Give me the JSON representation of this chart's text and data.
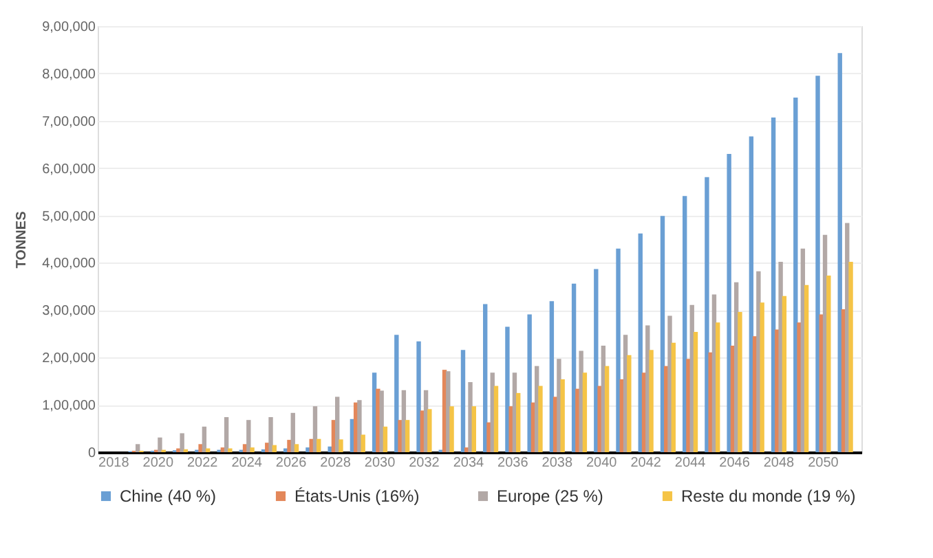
{
  "chart_data": {
    "type": "bar",
    "ylabel": "TONNES",
    "categories": [
      "2018",
      null,
      "2020",
      null,
      "2022",
      null,
      "2024",
      null,
      "2026",
      null,
      "2028",
      null,
      "2030",
      null,
      "2032",
      null,
      "2034",
      null,
      "2036",
      null,
      "2038",
      null,
      "2040",
      null,
      "2042",
      null,
      "2044",
      null,
      "2046",
      null,
      "2048",
      null,
      "2050",
      null
    ],
    "series": [
      {
        "name": "Chine (40 %)",
        "color": "#6a9fd4",
        "values": [
          0,
          2000,
          3000,
          4000,
          5000,
          5000,
          5000,
          6000,
          8000,
          10000,
          12000,
          70000,
          168000,
          248000,
          234000,
          5000,
          216000,
          313000,
          265000,
          291000,
          319000,
          356000,
          387000,
          430000,
          462000,
          499000,
          541000,
          581000,
          630000,
          667000,
          707000,
          749000,
          795000,
          843000
        ]
      },
      {
        "name": "États-Unis (16%)",
        "color": "#e3875a",
        "values": [
          0,
          3000,
          5000,
          8000,
          17000,
          10000,
          17000,
          20000,
          26000,
          28000,
          68000,
          105000,
          134000,
          68000,
          88000,
          174000,
          10000,
          63000,
          97000,
          105000,
          117000,
          134000,
          140000,
          154000,
          168000,
          182000,
          197000,
          211000,
          225000,
          245000,
          259000,
          274000,
          291000,
          302000
        ]
      },
      {
        "name": "Europe (25 %)",
        "color": "#b2a8a6",
        "values": [
          0,
          17000,
          31000,
          40000,
          54000,
          74000,
          68000,
          74000,
          83000,
          97000,
          117000,
          110000,
          130000,
          131000,
          131000,
          171000,
          148000,
          168000,
          168000,
          182000,
          197000,
          214000,
          225000,
          248000,
          268000,
          288000,
          311000,
          333000,
          359000,
          382000,
          402000,
          430000,
          459000,
          484000
        ]
      },
      {
        "name": "Reste du monde (19 %)",
        "color": "#f5c446",
        "values": [
          0,
          3000,
          5000,
          6000,
          8000,
          8000,
          10000,
          15000,
          17000,
          28000,
          27000,
          37000,
          54000,
          68000,
          91000,
          97000,
          97000,
          140000,
          125000,
          140000,
          154000,
          168000,
          182000,
          205000,
          216000,
          231000,
          254000,
          274000,
          296000,
          316000,
          330000,
          353000,
          373000,
          402000
        ]
      }
    ],
    "ylim": [
      0,
      900000
    ],
    "yticks": [
      0,
      {
        "value": 100000,
        "label": "1,00,000"
      },
      {
        "value": 200000,
        "label": "2,00,000"
      },
      {
        "value": 300000,
        "label": "3,00,000"
      },
      {
        "value": 400000,
        "label": "4,00,000"
      },
      {
        "value": 500000,
        "label": "5,00,000"
      },
      {
        "value": 600000,
        "label": "6,00,000"
      },
      {
        "value": 700000,
        "label": "7,00,000"
      },
      {
        "value": 800000,
        "label": "8,00,000"
      },
      {
        "value": 900000,
        "label": "9,00,000"
      }
    ],
    "grid": "y",
    "legend": "bottom"
  }
}
